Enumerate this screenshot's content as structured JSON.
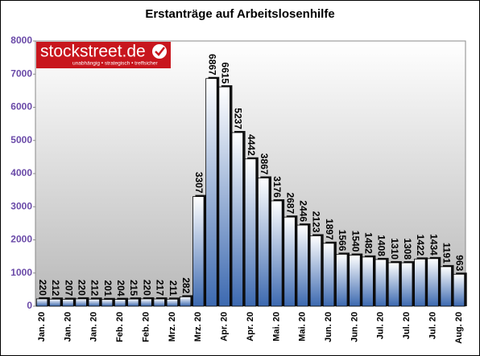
{
  "chart_data": {
    "type": "bar",
    "title": "Erstanträge auf Arbeitslosenhilfe",
    "logo": {
      "name": "stockstreet.de",
      "tagline": "unabhängig • strategisch • treffsicher"
    },
    "categories": [
      "Jan. 20",
      null,
      "Jan. 20",
      null,
      "Jan. 20",
      null,
      "Feb. 20",
      null,
      "Feb. 20",
      null,
      "Mrz. 20",
      null,
      "Mrz. 20",
      null,
      "Apr. 20",
      null,
      "Apr. 20",
      null,
      "Mai. 20",
      null,
      "Mai. 20",
      null,
      "Jun. 20",
      null,
      "Jun. 20",
      null,
      "Jul. 20",
      null,
      "Jul. 20",
      null,
      "Jul. 20",
      null,
      "Aug. 20"
    ],
    "values": [
      220,
      212,
      207,
      220,
      212,
      201,
      204,
      215,
      220,
      217,
      211,
      282,
      3307,
      6867,
      6615,
      5237,
      4442,
      3867,
      3176,
      2687,
      2446,
      2123,
      1897,
      1566,
      1540,
      1482,
      1408,
      1310,
      1308,
      1422,
      1434,
      1191,
      963
    ],
    "color": "#4a76b8",
    "ylim": [
      0,
      8000
    ],
    "yticks": [
      0,
      1000,
      2000,
      3000,
      4000,
      5000,
      6000,
      7000,
      8000
    ],
    "grid": false
  }
}
